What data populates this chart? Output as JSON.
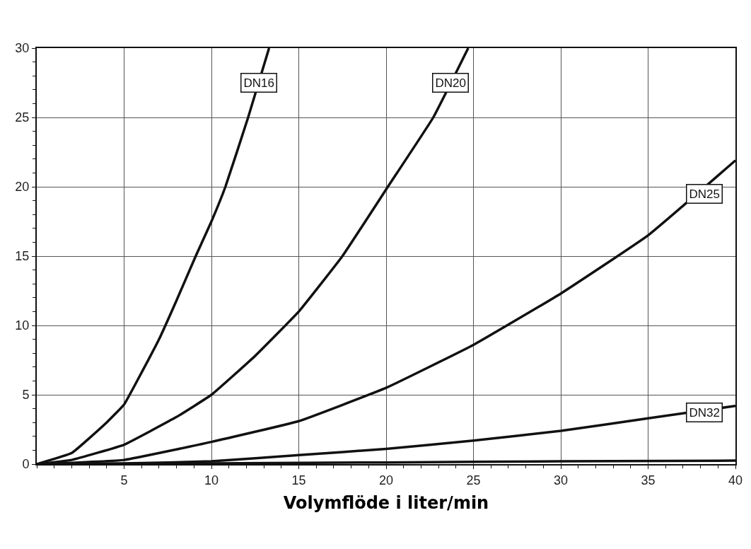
{
  "chart_data": {
    "type": "line",
    "xlabel": "Volymflöde i liter/min",
    "series": [
      {
        "color": "#111111",
        "x": [
          0,
          2,
          4,
          5,
          6,
          7,
          8,
          9.1,
          10,
          10.8,
          12.1,
          13.3
        ],
        "values": [
          0,
          0.8,
          3,
          4.3,
          6.6,
          9,
          11.8,
          15,
          17.5,
          20,
          25,
          30
        ]
      },
      {
        "color": "#111111",
        "x": [
          0,
          2,
          5,
          8,
          10,
          12.5,
          15,
          17.5,
          20.1,
          22.7,
          24.7
        ],
        "values": [
          0,
          0.3,
          1.4,
          3.4,
          5,
          7.8,
          11,
          15,
          20,
          25,
          30
        ]
      },
      {
        "color": "#111111",
        "x": [
          0,
          5,
          10,
          15,
          20,
          25,
          30,
          35,
          40
        ],
        "values": [
          0,
          0.3,
          1.6,
          3.1,
          5.5,
          8.6,
          12.3,
          16.5,
          21.9
        ]
      },
      {
        "color": "#111111",
        "x": [
          0,
          5,
          10,
          15,
          20,
          25,
          30,
          35,
          40
        ],
        "values": [
          0,
          0.05,
          0.2,
          0.65,
          1.1,
          1.7,
          2.4,
          3.3,
          4.2
        ]
      },
      {
        "color": "#111111",
        "x": [
          0,
          10,
          20,
          30,
          40
        ],
        "values": [
          0,
          0.05,
          0.12,
          0.2,
          0.25
        ]
      }
    ],
    "annotations": [
      {
        "text": "DN16",
        "x": 12.7,
        "y": 27.5
      },
      {
        "text": "DN20",
        "x": 23.7,
        "y": 27.5
      },
      {
        "text": "DN25",
        "x": 38.2,
        "y": 19.5
      },
      {
        "text": "DN32",
        "x": 38.2,
        "y": 3.7
      }
    ],
    "xlim": [
      0,
      40
    ],
    "xticks": [
      5,
      10,
      15,
      20,
      25,
      30,
      35,
      40
    ],
    "ylim": [
      0,
      30
    ],
    "yticks": [
      0,
      5,
      10,
      15,
      20,
      25,
      30
    ],
    "grid": true,
    "marker": "none",
    "line_style": "solid"
  }
}
